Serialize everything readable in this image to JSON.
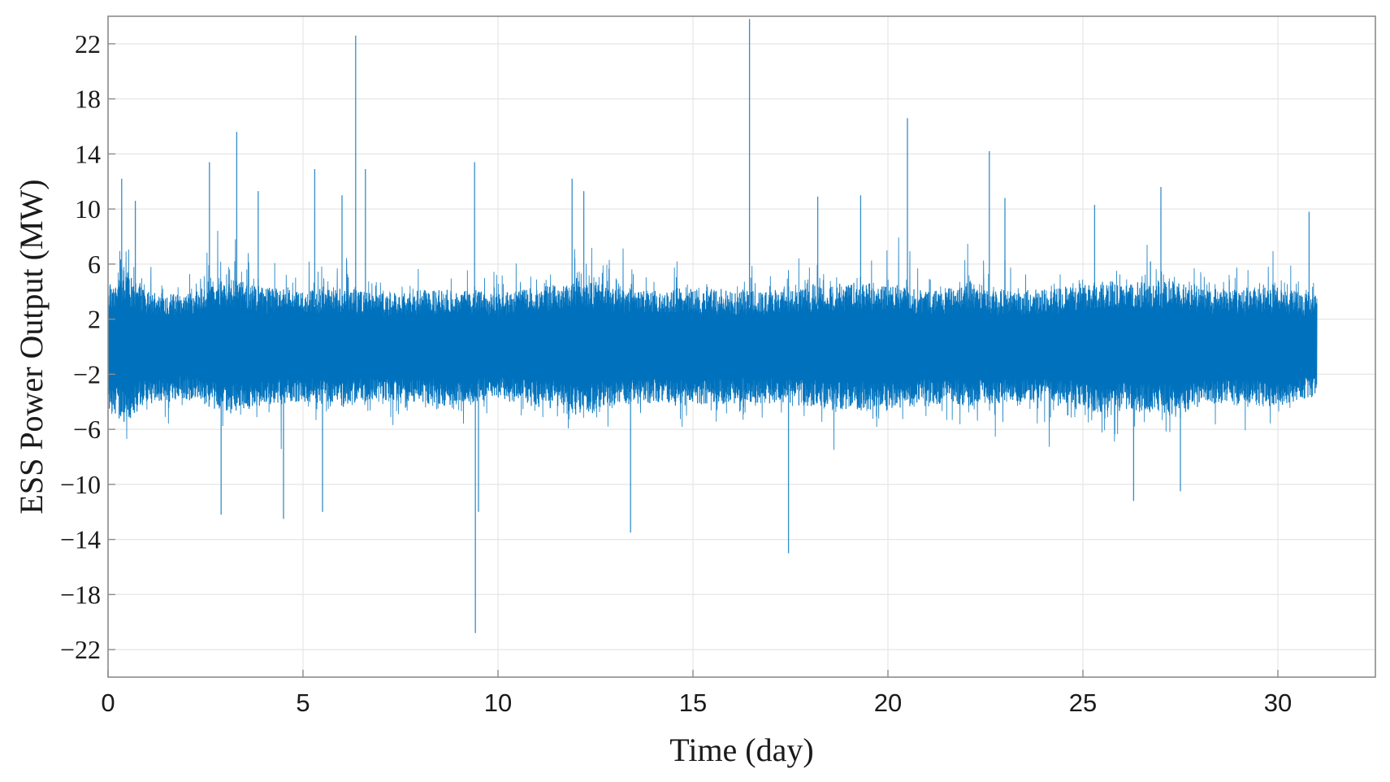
{
  "chart_data": {
    "type": "line",
    "title": "",
    "xlabel": "Time (day)",
    "ylabel": "ESS Power Output (MW)",
    "xlim": [
      0,
      32.5
    ],
    "ylim": [
      -24,
      24
    ],
    "x_ticks": [
      0,
      5,
      10,
      15,
      20,
      25,
      30
    ],
    "x_tick_labels": [
      "0",
      "5",
      "10",
      "15",
      "20",
      "25",
      "30"
    ],
    "y_ticks": [
      22,
      18,
      14,
      10,
      6,
      2,
      -2,
      -6,
      -10,
      -14,
      -18,
      -22
    ],
    "y_tick_labels": [
      "22",
      "18",
      "14",
      "10",
      "6",
      "2",
      "−2",
      "−6",
      "−10",
      "−14",
      "−18",
      "−22"
    ],
    "grid": true,
    "line_color": "#0072bd",
    "series": [
      {
        "x_start": 0,
        "x_end": 31,
        "sampling": "continuous (approx. one sample per minute)",
        "typical_range": [
          -8,
          8
        ],
        "envelope_points": [
          {
            "x": 0.0,
            "min": -8,
            "max": 9
          },
          {
            "x": 0.4,
            "min": -10,
            "max": 12
          },
          {
            "x": 1.0,
            "min": -8,
            "max": 8
          },
          {
            "x": 2.0,
            "min": -7,
            "max": 8
          },
          {
            "x": 3.0,
            "min": -8,
            "max": 11
          },
          {
            "x": 4.0,
            "min": -8,
            "max": 9
          },
          {
            "x": 5.0,
            "min": -8,
            "max": 8
          },
          {
            "x": 6.0,
            "min": -8,
            "max": 9
          },
          {
            "x": 7.0,
            "min": -7,
            "max": 8
          },
          {
            "x": 8.0,
            "min": -8,
            "max": 8
          },
          {
            "x": 9.0,
            "min": -9,
            "max": 8
          },
          {
            "x": 10.0,
            "min": -7,
            "max": 8
          },
          {
            "x": 11.0,
            "min": -8,
            "max": 9
          },
          {
            "x": 11.8,
            "min": -10,
            "max": 8
          },
          {
            "x": 12.0,
            "min": -9,
            "max": 11
          },
          {
            "x": 13.0,
            "min": -8,
            "max": 9
          },
          {
            "x": 14.0,
            "min": -8,
            "max": 8
          },
          {
            "x": 15.0,
            "min": -8,
            "max": 9
          },
          {
            "x": 16.0,
            "min": -8,
            "max": 8
          },
          {
            "x": 17.0,
            "min": -8,
            "max": 8
          },
          {
            "x": 18.0,
            "min": -8,
            "max": 9
          },
          {
            "x": 19.0,
            "min": -9,
            "max": 9
          },
          {
            "x": 20.0,
            "min": -9,
            "max": 9
          },
          {
            "x": 21.0,
            "min": -8,
            "max": 8
          },
          {
            "x": 22.0,
            "min": -8,
            "max": 9
          },
          {
            "x": 23.0,
            "min": -8,
            "max": 8
          },
          {
            "x": 24.0,
            "min": -8,
            "max": 8
          },
          {
            "x": 25.0,
            "min": -9,
            "max": 9
          },
          {
            "x": 25.5,
            "min": -11,
            "max": 8
          },
          {
            "x": 26.0,
            "min": -9,
            "max": 9
          },
          {
            "x": 27.0,
            "min": -9,
            "max": 10
          },
          {
            "x": 27.5,
            "min": -10,
            "max": 9
          },
          {
            "x": 28.0,
            "min": -8,
            "max": 9
          },
          {
            "x": 29.0,
            "min": -8,
            "max": 8
          },
          {
            "x": 30.0,
            "min": -8,
            "max": 9
          },
          {
            "x": 31.0,
            "min": -6,
            "max": 8
          }
        ],
        "spikes": [
          {
            "x": 0.35,
            "y": 12.2
          },
          {
            "x": 0.7,
            "y": 10.6
          },
          {
            "x": 2.6,
            "y": 13.4
          },
          {
            "x": 2.9,
            "y": -12.2
          },
          {
            "x": 3.3,
            "y": 15.6
          },
          {
            "x": 3.85,
            "y": 11.3
          },
          {
            "x": 4.5,
            "y": -12.5
          },
          {
            "x": 5.3,
            "y": 12.9
          },
          {
            "x": 5.5,
            "y": -12.0
          },
          {
            "x": 6.0,
            "y": 11.0
          },
          {
            "x": 6.35,
            "y": 22.6
          },
          {
            "x": 6.6,
            "y": 12.9
          },
          {
            "x": 9.4,
            "y": 13.4
          },
          {
            "x": 9.42,
            "y": -20.8
          },
          {
            "x": 9.5,
            "y": -12.0
          },
          {
            "x": 11.9,
            "y": 12.2
          },
          {
            "x": 12.2,
            "y": 11.3
          },
          {
            "x": 13.4,
            "y": -13.5
          },
          {
            "x": 16.45,
            "y": 23.8
          },
          {
            "x": 17.45,
            "y": -15.0
          },
          {
            "x": 18.2,
            "y": 10.9
          },
          {
            "x": 19.3,
            "y": 11.0
          },
          {
            "x": 20.5,
            "y": 16.6
          },
          {
            "x": 22.6,
            "y": 14.2
          },
          {
            "x": 23.0,
            "y": 10.8
          },
          {
            "x": 25.3,
            "y": 10.3
          },
          {
            "x": 26.3,
            "y": -11.2
          },
          {
            "x": 27.0,
            "y": 11.6
          },
          {
            "x": 27.5,
            "y": -10.5
          },
          {
            "x": 30.8,
            "y": 9.8
          }
        ]
      }
    ]
  }
}
